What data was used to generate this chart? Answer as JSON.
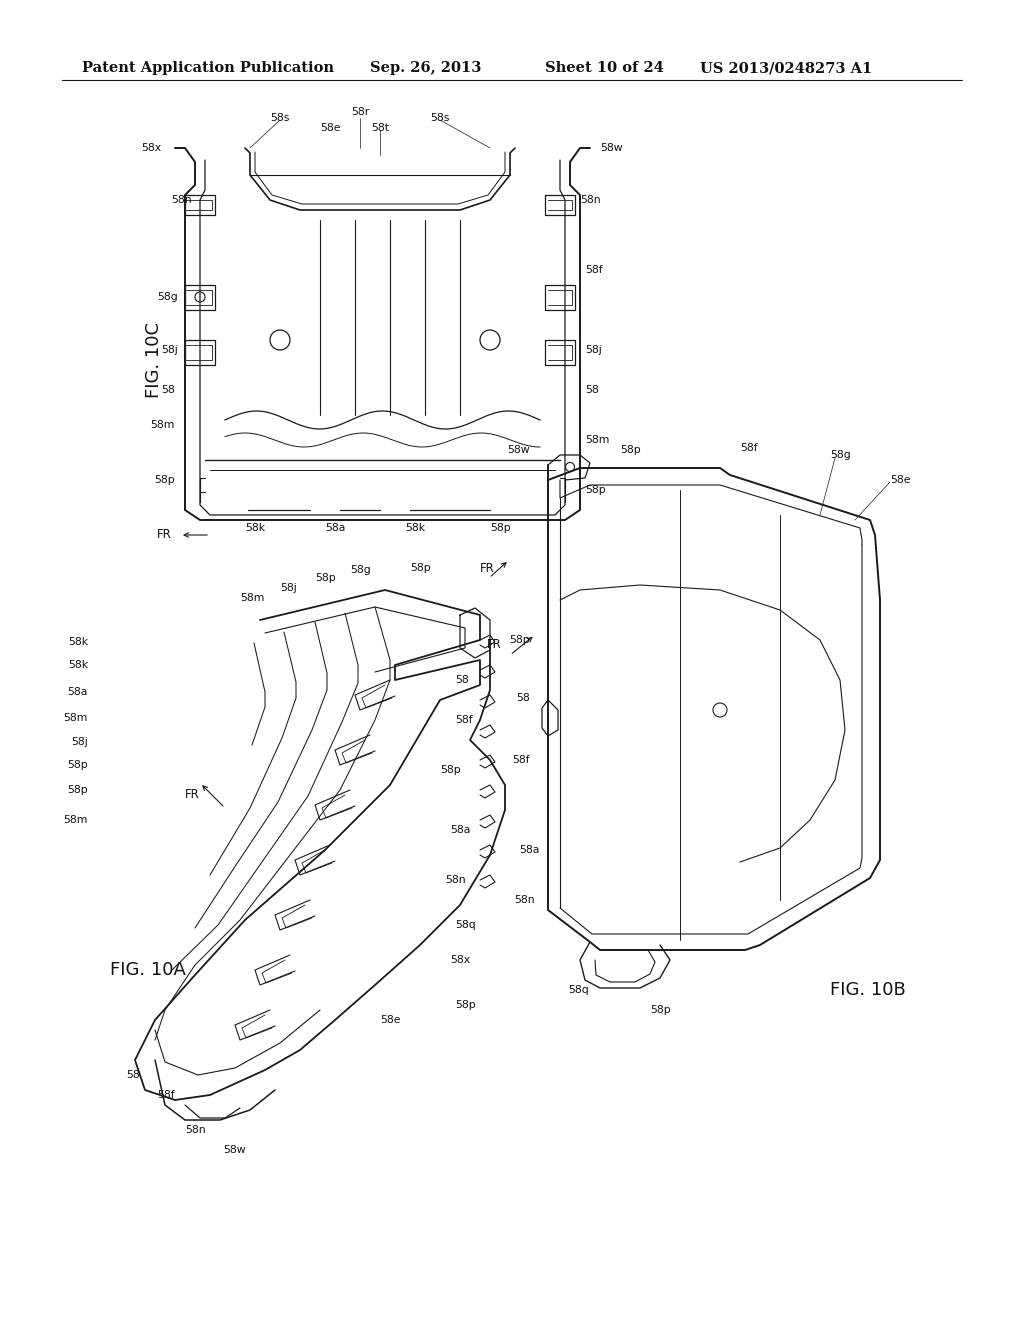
{
  "background_color": "#ffffff",
  "line_color": "#1a1a1a",
  "header_text": "Patent Application Publication",
  "header_date": "Sep. 26, 2013",
  "header_sheet": "Sheet 10 of 24",
  "header_patent": "US 2013/0248273 A1",
  "header_fontsize": 10.5,
  "fig_label_10c": "FIG. 10C",
  "fig_label_10a": "FIG. 10A",
  "fig_label_10b": "FIG. 10B",
  "label_fontsize": 7.8,
  "fig_label_fontsize": 13
}
